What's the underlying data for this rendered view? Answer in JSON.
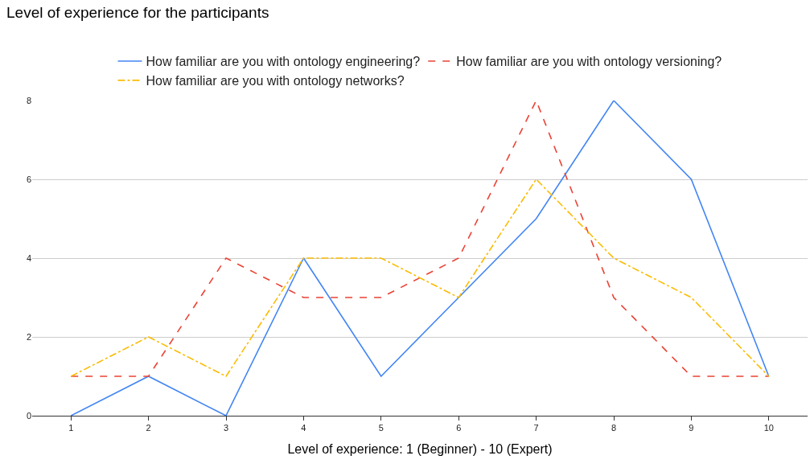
{
  "chart_data": {
    "type": "line",
    "title": "Level of experience for the participants",
    "xlabel": "Level of experience: 1 (Beginner) - 10 (Expert)",
    "categories": [
      "1",
      "2",
      "3",
      "4",
      "5",
      "6",
      "7",
      "8",
      "9",
      "10"
    ],
    "series": [
      {
        "name": "How familiar are you with ontology engineering?",
        "color": "#4285f4",
        "line_style": "solid",
        "values": [
          0,
          1,
          0,
          4,
          1,
          3,
          5,
          8,
          6,
          1
        ]
      },
      {
        "name": "How familiar are you with ontology versioning?",
        "color": "#ea4335",
        "line_style": "dashed",
        "values": [
          1,
          1,
          4,
          3,
          3,
          4,
          8,
          3,
          1,
          1
        ]
      },
      {
        "name": "How familiar are you with ontology networks?",
        "color": "#fbbc04",
        "line_style": "dashdot",
        "values": [
          1,
          2,
          1,
          4,
          4,
          3,
          6,
          4,
          3,
          1
        ]
      }
    ],
    "ylim": [
      0,
      8
    ],
    "yticks": [
      0,
      2,
      4,
      6,
      8
    ],
    "grid": "y",
    "legend": "top",
    "marker": "none"
  }
}
